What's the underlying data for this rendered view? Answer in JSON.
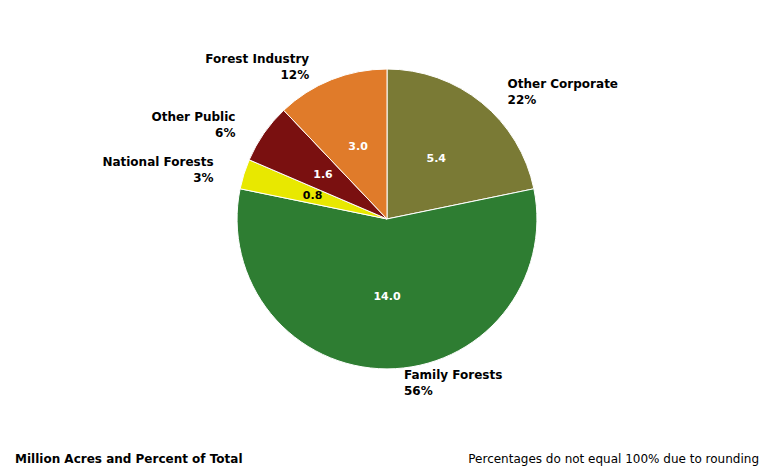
{
  "chart_data": {
    "type": "pie",
    "categories": [
      "Other Corporate",
      "Family Forests",
      "National Forests",
      "Other Public",
      "Forest Industry"
    ],
    "values": [
      5.4,
      14.0,
      0.8,
      1.6,
      3.0
    ],
    "value_labels": [
      "5.4",
      "14.0",
      "0.8",
      "1.6",
      "3.0"
    ],
    "share_labels": [
      "22%",
      "56%",
      "3%",
      "6%",
      "12%"
    ],
    "colors": [
      "#7a7a35",
      "#2e7d32",
      "#e8e800",
      "#7a1010",
      "#e07b2a"
    ],
    "data_labels": true,
    "legend": false,
    "annotations": [
      "Million Acres and Percent of Total",
      "Percentages do not equal 100% due to rounding"
    ]
  }
}
